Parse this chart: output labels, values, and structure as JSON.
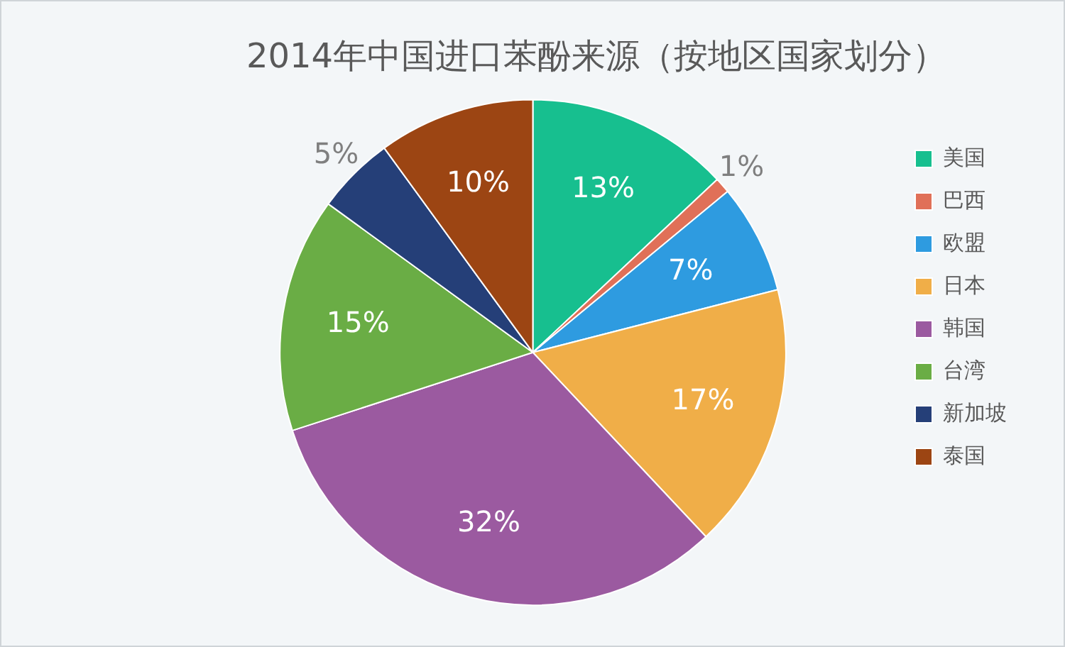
{
  "chart_data": {
    "type": "pie",
    "title": "2014年中国进口苯酚来源（按地区国家划分）",
    "categories": [
      "美国",
      "巴西",
      "欧盟",
      "日本",
      "韩国",
      "台湾",
      "新加坡",
      "泰国"
    ],
    "values": [
      13,
      1,
      7,
      17,
      32,
      15,
      5,
      10
    ],
    "colors": [
      "#17bf8f",
      "#e07058",
      "#2e9be0",
      "#f0ae48",
      "#9b5aa0",
      "#6aad45",
      "#253f78",
      "#9c4513"
    ],
    "value_labels": [
      "13%",
      "1%",
      "7%",
      "17%",
      "32%",
      "15%",
      "5%",
      "10%"
    ],
    "legend": "right"
  }
}
